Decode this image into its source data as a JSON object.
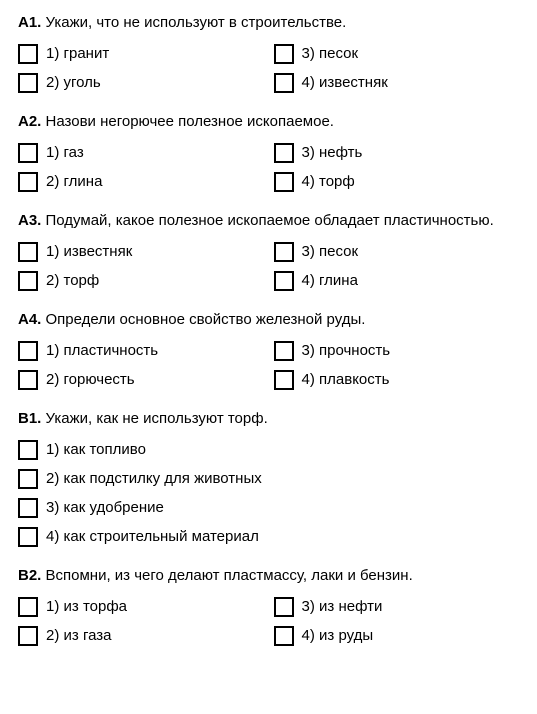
{
  "questions": [
    {
      "label": "А1.",
      "text": "Укажи, что не используют в строительстве.",
      "layout": "grid",
      "options": [
        {
          "num": "1)",
          "text": "гранит"
        },
        {
          "num": "3)",
          "text": "песок"
        },
        {
          "num": "2)",
          "text": "уголь"
        },
        {
          "num": "4)",
          "text": "известняк"
        }
      ]
    },
    {
      "label": "А2.",
      "text": "Назови негорючее полезное ископаемое.",
      "layout": "grid",
      "options": [
        {
          "num": "1)",
          "text": "газ"
        },
        {
          "num": "3)",
          "text": "нефть"
        },
        {
          "num": "2)",
          "text": "глина"
        },
        {
          "num": "4)",
          "text": "торф"
        }
      ]
    },
    {
      "label": "А3.",
      "text": "Подумай, какое полезное ископаемое обладает пластичностью.",
      "layout": "grid",
      "options": [
        {
          "num": "1)",
          "text": "известняк"
        },
        {
          "num": "3)",
          "text": "песок"
        },
        {
          "num": "2)",
          "text": "торф"
        },
        {
          "num": "4)",
          "text": "глина"
        }
      ]
    },
    {
      "label": "А4.",
      "text": "Определи основное свойство железной руды.",
      "layout": "grid",
      "options": [
        {
          "num": "1)",
          "text": "пластичность"
        },
        {
          "num": "3)",
          "text": "прочность"
        },
        {
          "num": "2)",
          "text": "горючесть"
        },
        {
          "num": "4)",
          "text": "плавкость"
        }
      ]
    },
    {
      "label": "В1.",
      "text": "Укажи, как не используют торф.",
      "layout": "column",
      "options": [
        {
          "num": "1)",
          "text": "как топливо"
        },
        {
          "num": "2)",
          "text": "как подстилку для животных"
        },
        {
          "num": "3)",
          "text": "как удобрение"
        },
        {
          "num": "4)",
          "text": "как строительный материал"
        }
      ]
    },
    {
      "label": "В2.",
      "text": "Вспомни, из чего делают пластмассу, лаки и бензин.",
      "layout": "grid",
      "options": [
        {
          "num": "1)",
          "text": "из торфа"
        },
        {
          "num": "3)",
          "text": "из нефти"
        },
        {
          "num": "2)",
          "text": "из газа"
        },
        {
          "num": "4)",
          "text": "из руды"
        }
      ]
    }
  ]
}
